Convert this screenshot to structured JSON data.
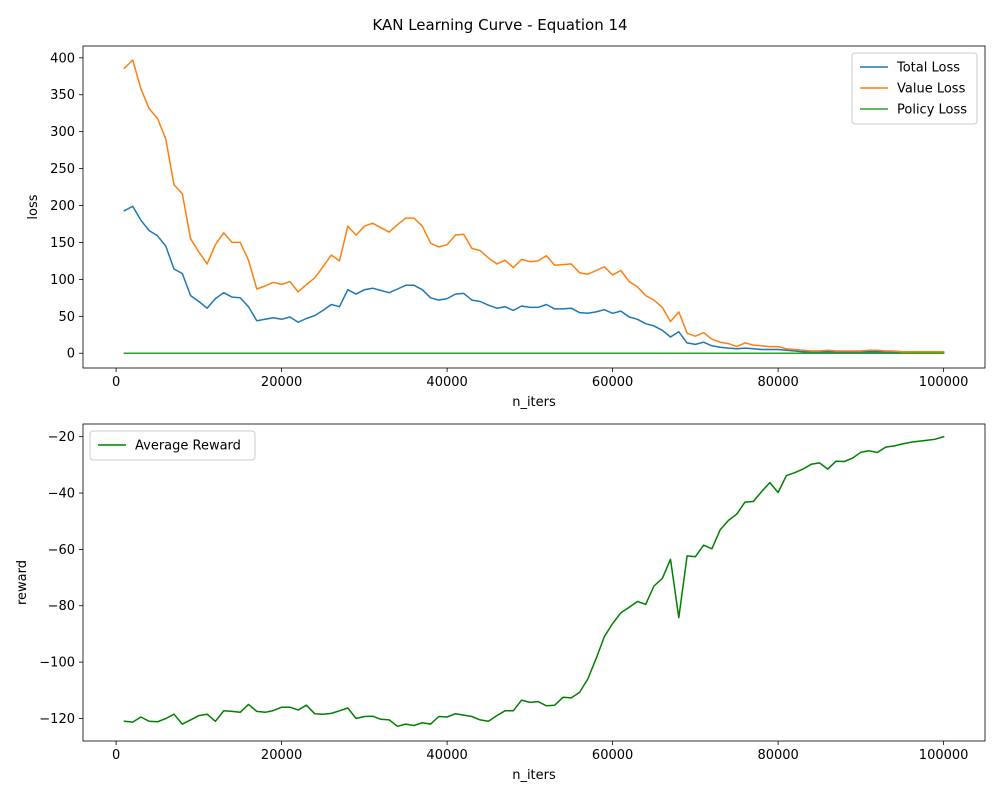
{
  "figure": {
    "title": "KAN Learning Curve - Equation 14"
  },
  "chart_data": [
    {
      "type": "line",
      "xlabel": "n_iters",
      "ylabel": "loss",
      "xlim": [
        -4000,
        105000
      ],
      "ylim": [
        -20,
        416
      ],
      "xticks": [
        0,
        20000,
        40000,
        60000,
        80000,
        100000
      ],
      "yticks": [
        0,
        50,
        100,
        150,
        200,
        250,
        300,
        350,
        400
      ],
      "legend_position": "upper right",
      "grid": false,
      "x": [
        1000,
        2000,
        3000,
        4000,
        5000,
        6000,
        7000,
        8000,
        9000,
        10000,
        11000,
        12000,
        13000,
        14000,
        15000,
        16000,
        17000,
        18000,
        19000,
        20000,
        21000,
        22000,
        23000,
        24000,
        25000,
        26000,
        27000,
        28000,
        29000,
        30000,
        31000,
        32000,
        33000,
        34000,
        35000,
        36000,
        37000,
        38000,
        39000,
        40000,
        41000,
        42000,
        43000,
        44000,
        45000,
        46000,
        47000,
        48000,
        49000,
        50000,
        51000,
        52000,
        53000,
        54000,
        55000,
        56000,
        57000,
        58000,
        59000,
        60000,
        61000,
        62000,
        63000,
        64000,
        65000,
        66000,
        67000,
        68000,
        69000,
        70000,
        71000,
        72000,
        73000,
        74000,
        75000,
        76000,
        77000,
        78000,
        79000,
        80000,
        81000,
        82000,
        83000,
        84000,
        85000,
        86000,
        87000,
        88000,
        89000,
        90000,
        91000,
        92000,
        93000,
        94000,
        95000,
        96000,
        97000,
        98000,
        99000,
        100000
      ],
      "series": [
        {
          "name": "Total Loss",
          "color": "#1f77b4",
          "values": [
            193,
            199,
            180,
            166,
            159,
            145,
            114,
            108,
            78,
            70,
            61,
            74,
            82,
            76,
            75,
            63,
            44,
            46,
            48,
            46,
            49,
            42,
            47,
            51,
            58,
            66,
            63,
            86,
            80,
            86,
            88,
            85,
            82,
            87,
            92,
            92,
            86,
            75,
            72,
            74,
            80,
            81,
            72,
            70,
            65,
            61,
            63,
            58,
            64,
            62,
            62,
            66,
            60,
            60,
            61,
            55,
            54,
            56,
            59,
            54,
            57,
            49,
            46,
            40,
            37,
            31,
            22,
            29,
            14,
            12,
            15,
            10,
            8,
            7,
            6,
            7,
            6,
            5,
            5,
            5,
            4,
            3,
            2,
            2,
            2,
            2,
            2,
            2,
            2,
            2,
            2,
            2,
            2,
            1,
            1,
            1,
            1,
            1,
            1,
            1
          ]
        },
        {
          "name": "Value Loss",
          "color": "#ff7f0e",
          "values": [
            386,
            397,
            358,
            331,
            318,
            290,
            228,
            216,
            155,
            137,
            121,
            147,
            163,
            150,
            150,
            126,
            87,
            91,
            96,
            93,
            97,
            83,
            93,
            102,
            117,
            133,
            125,
            172,
            160,
            172,
            176,
            170,
            164,
            174,
            183,
            183,
            172,
            149,
            144,
            147,
            160,
            161,
            142,
            139,
            129,
            121,
            126,
            116,
            127,
            124,
            125,
            132,
            119,
            120,
            121,
            109,
            107,
            112,
            117,
            106,
            112,
            97,
            90,
            78,
            72,
            62,
            43,
            56,
            27,
            23,
            28,
            19,
            15,
            13,
            9,
            14,
            11,
            10,
            9,
            9,
            6,
            5,
            4,
            3,
            3,
            4,
            3,
            3,
            3,
            3,
            4,
            4,
            3,
            3,
            2,
            2,
            2,
            2,
            2,
            2
          ]
        },
        {
          "name": "Policy Loss",
          "color": "#2ca02c",
          "values": [
            0,
            0,
            0,
            0,
            0,
            0,
            0,
            0,
            0,
            0,
            0,
            0,
            0,
            0,
            0,
            0,
            0,
            0,
            0,
            0,
            0,
            0,
            0,
            0,
            0,
            0,
            0,
            0,
            0,
            0,
            0,
            0,
            0,
            0,
            0,
            0,
            0,
            0,
            0,
            0,
            0,
            0,
            0,
            0,
            0,
            0,
            0,
            0,
            0,
            0,
            0,
            0,
            0,
            0,
            0,
            0,
            0,
            0,
            0,
            0,
            0,
            0,
            0,
            0,
            0,
            0,
            0,
            0,
            0,
            0,
            0,
            0,
            0,
            0,
            0,
            0,
            0,
            0,
            0,
            0,
            0,
            0,
            0,
            0,
            0,
            0,
            0,
            0,
            0,
            0,
            0,
            0,
            0,
            0,
            0,
            0,
            0,
            0,
            0,
            0
          ]
        }
      ]
    },
    {
      "type": "line",
      "xlabel": "n_iters",
      "ylabel": "reward",
      "xlim": [
        -4000,
        105000
      ],
      "ylim": [
        -128,
        -15.5
      ],
      "xticks": [
        0,
        20000,
        40000,
        60000,
        80000,
        100000
      ],
      "yticks": [
        -120,
        -100,
        -80,
        -60,
        -40,
        -20
      ],
      "legend_position": "upper left",
      "grid": false,
      "x": [
        1000,
        2000,
        3000,
        4000,
        5000,
        6000,
        7000,
        8000,
        9000,
        10000,
        11000,
        12000,
        13000,
        14000,
        15000,
        16000,
        17000,
        18000,
        19000,
        20000,
        21000,
        22000,
        23000,
        24000,
        25000,
        26000,
        27000,
        28000,
        29000,
        30000,
        31000,
        32000,
        33000,
        34000,
        35000,
        36000,
        37000,
        38000,
        39000,
        40000,
        41000,
        42000,
        43000,
        44000,
        45000,
        46000,
        47000,
        48000,
        49000,
        50000,
        51000,
        52000,
        53000,
        54000,
        55000,
        56000,
        57000,
        58000,
        59000,
        60000,
        61000,
        62000,
        63000,
        64000,
        65000,
        66000,
        67000,
        68000,
        69000,
        70000,
        71000,
        72000,
        73000,
        74000,
        75000,
        76000,
        77000,
        78000,
        79000,
        80000,
        81000,
        82000,
        83000,
        84000,
        85000,
        86000,
        87000,
        88000,
        89000,
        90000,
        91000,
        92000,
        93000,
        94000,
        95000,
        96000,
        97000,
        98000,
        99000,
        100000
      ],
      "series": [
        {
          "name": "Average Reward",
          "color": "#008000",
          "values": [
            -121,
            -121.3,
            -119.5,
            -121,
            -121.2,
            -120,
            -118.5,
            -122,
            -120.5,
            -119,
            -118.5,
            -121,
            -117.3,
            -117.5,
            -117.8,
            -115,
            -117.5,
            -117.8,
            -117.2,
            -116,
            -116,
            -117,
            -115.3,
            -118.3,
            -118.5,
            -118.2,
            -117.3,
            -116.3,
            -120,
            -119.3,
            -119.2,
            -120.3,
            -120.5,
            -122.8,
            -122,
            -122.5,
            -121.5,
            -122,
            -119.3,
            -119.5,
            -118.3,
            -118.8,
            -119.3,
            -120.5,
            -121,
            -119,
            -117.3,
            -117.3,
            -113.5,
            -114.3,
            -114,
            -115.5,
            -115.3,
            -112.5,
            -112.7,
            -110.8,
            -106,
            -98.8,
            -91,
            -86.3,
            -82.5,
            -80.5,
            -78.5,
            -79.5,
            -73,
            -70.3,
            -63.5,
            -84.2,
            -62.3,
            -62.6,
            -58.5,
            -59.8,
            -53,
            -49.7,
            -47.5,
            -43.2,
            -43,
            -39.5,
            -36.3,
            -39.8,
            -33.8,
            -32.8,
            -31.5,
            -29.8,
            -29.3,
            -31.5,
            -28.7,
            -28.8,
            -27.6,
            -25.5,
            -25,
            -25.6,
            -23.7,
            -23.3,
            -22.6,
            -22,
            -21.6,
            -21.3,
            -20.9,
            -20
          ]
        }
      ]
    }
  ]
}
